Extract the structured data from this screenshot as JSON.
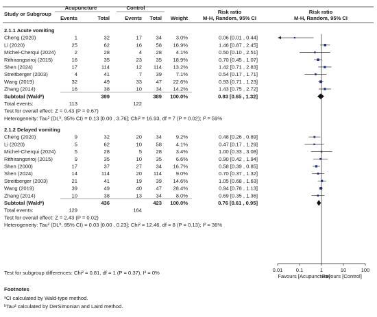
{
  "header": {
    "study_col": "Study or Subgroup",
    "group1": "Acupuncture",
    "group2": "Control",
    "events": "Events",
    "total": "Total",
    "weight": "Weight",
    "rr_title": "Risk ratio",
    "rr_method": "M-H, Random, 95% CI"
  },
  "chart_data": {
    "type": "forest",
    "x_scale": "log",
    "xlim": [
      0.01,
      100
    ],
    "x_ticks": [
      "0.01",
      "0.1",
      "1",
      "10",
      "100"
    ],
    "x_tick_values": [
      0.01,
      0.1,
      1,
      10,
      100
    ],
    "favours_left": "Favours [Acupuncture]",
    "favours_right": "Favours [Control]",
    "point_color": "#1f2f8a",
    "subgroups": [
      {
        "title": "2.1.1 Acute vomiting",
        "studies": [
          {
            "name": "Cheng (2020)",
            "e1": "1",
            "n1": "32",
            "e2": "17",
            "n2": "34",
            "weight": "3.0%",
            "ci_text": "0.06 [0.01 , 0.44]",
            "rr": 0.06,
            "lo": 0.01,
            "hi": 0.44,
            "arrow_left": true
          },
          {
            "name": "Li (2020)",
            "e1": "25",
            "n1": "62",
            "e2": "16",
            "n2": "58",
            "weight": "16.9%",
            "ci_text": "1.46 [0.87 , 2.45]",
            "rr": 1.46,
            "lo": 0.87,
            "hi": 2.45
          },
          {
            "name": "Michel-Cherqui (2024)",
            "e1": "2",
            "n1": "28",
            "e2": "4",
            "n2": "28",
            "weight": "4.1%",
            "ci_text": "0.50 [0.10 , 2.51]",
            "rr": 0.5,
            "lo": 0.1,
            "hi": 2.51
          },
          {
            "name": "Rithirangsriroj (2015)",
            "e1": "16",
            "n1": "35",
            "e2": "23",
            "n2": "35",
            "weight": "18.9%",
            "ci_text": "0.70 [0.45 , 1.07]",
            "rr": 0.7,
            "lo": 0.45,
            "hi": 1.07
          },
          {
            "name": "Shen (2024)",
            "e1": "17",
            "n1": "114",
            "e2": "12",
            "n2": "114",
            "weight": "13.2%",
            "ci_text": "1.42 [0.71 , 2.83]",
            "rr": 1.42,
            "lo": 0.71,
            "hi": 2.83
          },
          {
            "name": "Streitberger (2003)",
            "e1": "4",
            "n1": "41",
            "e2": "7",
            "n2": "39",
            "weight": "7.1%",
            "ci_text": "0.54 [0.17 , 1.71]",
            "rr": 0.54,
            "lo": 0.17,
            "hi": 1.71
          },
          {
            "name": "Wang (2019)",
            "e1": "32",
            "n1": "49",
            "e2": "33",
            "n2": "47",
            "weight": "22.6%",
            "ci_text": "0.93 [0.71 , 1.23]",
            "rr": 0.93,
            "lo": 0.71,
            "hi": 1.23
          },
          {
            "name": "Zhang (2014)",
            "e1": "16",
            "n1": "38",
            "e2": "10",
            "n2": "34",
            "weight": "14.2%",
            "ci_text": "1.43 [0.75 , 2.72]",
            "rr": 1.43,
            "lo": 0.75,
            "hi": 2.72
          }
        ],
        "subtotal": {
          "label": "Subtotal (Waldᵃ)",
          "n1": "399",
          "n2": "389",
          "weight": "100.0%",
          "ci_text": "0.93 [0.65 , 1.32]",
          "rr": 0.93,
          "lo": 0.65,
          "hi": 1.32
        },
        "total_events": {
          "label": "Total events:",
          "e1": "113",
          "e2": "122"
        },
        "overall_test": "Test for overall effect: Z = 0.43 (P = 0.67)",
        "heterogeneity": "Heterogeneity: Tau² (DLᵇ, 95% CI) = 0.13 [0.00 , 3.76]; Chi² = 16.93, df = 7 (P = 0.02); I² = 59%"
      },
      {
        "title": "2.1.2 Delayed vomiting",
        "studies": [
          {
            "name": "Cheng (2020)",
            "e1": "9",
            "n1": "32",
            "e2": "20",
            "n2": "34",
            "weight": "9.2%",
            "ci_text": "0.48 [0.26 , 0.89]",
            "rr": 0.48,
            "lo": 0.26,
            "hi": 0.89
          },
          {
            "name": "Li (2020)",
            "e1": "5",
            "n1": "62",
            "e2": "10",
            "n2": "58",
            "weight": "4.1%",
            "ci_text": "0.47 [0.17 , 1.29]",
            "rr": 0.47,
            "lo": 0.17,
            "hi": 1.29
          },
          {
            "name": "Michel-Cherqui (2024)",
            "e1": "5",
            "n1": "28",
            "e2": "5",
            "n2": "28",
            "weight": "3.4%",
            "ci_text": "1.00 [0.33 , 3.08]",
            "rr": 1.0,
            "lo": 0.33,
            "hi": 3.08
          },
          {
            "name": "Rithirangsriroj (2015)",
            "e1": "9",
            "n1": "35",
            "e2": "10",
            "n2": "35",
            "weight": "6.6%",
            "ci_text": "0.90 [0.42 , 1.94]",
            "rr": 0.9,
            "lo": 0.42,
            "hi": 1.94
          },
          {
            "name": "Shen (2000)",
            "e1": "17",
            "n1": "37",
            "e2": "27",
            "n2": "34",
            "weight": "16.7%",
            "ci_text": "0.58 [0.39 , 0.85]",
            "rr": 0.58,
            "lo": 0.39,
            "hi": 0.85
          },
          {
            "name": "Shen (2024)",
            "e1": "14",
            "n1": "114",
            "e2": "20",
            "n2": "114",
            "weight": "9.0%",
            "ci_text": "0.70 [0.37 , 1.32]",
            "rr": 0.7,
            "lo": 0.37,
            "hi": 1.32
          },
          {
            "name": "Streitberger (2003)",
            "e1": "21",
            "n1": "41",
            "e2": "19",
            "n2": "39",
            "weight": "14.6%",
            "ci_text": "1.05 [0.68 , 1.63]",
            "rr": 1.05,
            "lo": 0.68,
            "hi": 1.63
          },
          {
            "name": "Wang (2019)",
            "e1": "39",
            "n1": "49",
            "e2": "40",
            "n2": "47",
            "weight": "28.4%",
            "ci_text": "0.94 [0.78 , 1.13]",
            "rr": 0.94,
            "lo": 0.78,
            "hi": 1.13
          },
          {
            "name": "Zhang (2014)",
            "e1": "10",
            "n1": "38",
            "e2": "13",
            "n2": "34",
            "weight": "8.0%",
            "ci_text": "0.69 [0.35 , 1.36]",
            "rr": 0.69,
            "lo": 0.35,
            "hi": 1.36
          }
        ],
        "subtotal": {
          "label": "Subtotal (Waldᵃ)",
          "n1": "436",
          "n2": "423",
          "weight": "100.0%",
          "ci_text": "0.76 [0.61 , 0.95]",
          "rr": 0.76,
          "lo": 0.61,
          "hi": 0.95
        },
        "total_events": {
          "label": "Total events:",
          "e1": "129",
          "e2": "164"
        },
        "overall_test": "Test for overall effect: Z = 2.43 (P = 0.02)",
        "heterogeneity": "Heterogeneity: Tau² (DLᵇ, 95% CI) = 0.03 [0.00 , 0.23]; Chi² = 12.46, df = 8 (P = 0.13); I² = 36%"
      }
    ],
    "subgroup_diff": "Test for subgroup differences: Chi² = 0.81, df = 1 (P = 0.37), I² = 0%"
  },
  "footnotes": {
    "title": "Footnotes",
    "items": [
      "ᵃCI calculated by Wald-type method.",
      "ᵇTau² calculated by DerSimonian and Laird method."
    ]
  }
}
